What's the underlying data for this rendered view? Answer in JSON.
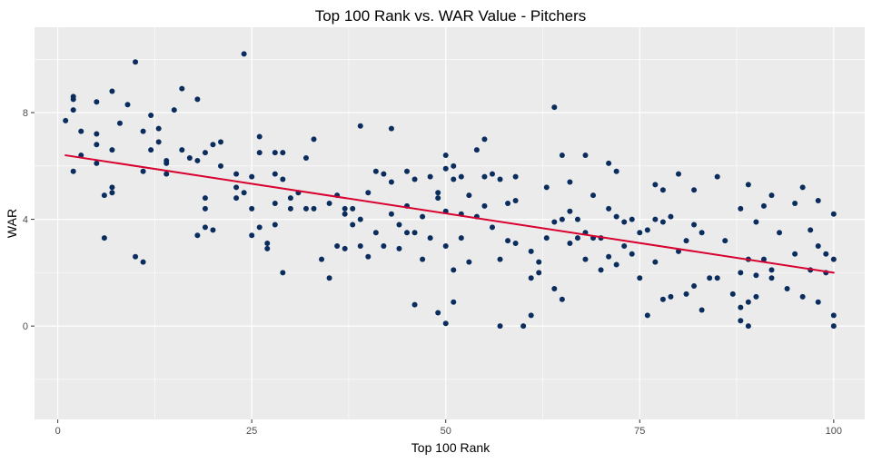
{
  "chart_data": {
    "type": "scatter",
    "title": "Top 100 Rank vs. WAR Value - Pitchers",
    "xlabel": "Top 100 Rank",
    "ylabel": "WAR",
    "xlim": [
      -3,
      104
    ],
    "ylim": [
      -3.5,
      11.2
    ],
    "x_ticks": [
      0,
      25,
      50,
      75,
      100
    ],
    "x_tick_labels": [
      "0",
      "25",
      "50",
      "75",
      "100"
    ],
    "y_ticks": [
      0,
      4,
      8
    ],
    "y_tick_labels": [
      "0",
      "4",
      "8"
    ],
    "grid": true,
    "legend": "none",
    "point_color": "#0b2d5e",
    "trend_color": "#d8002e",
    "panel_background": "#ebebeb",
    "grid_color": "#ffffff",
    "trend_line": {
      "x": [
        1,
        100
      ],
      "y": [
        6.4,
        2.0
      ]
    },
    "series": [
      {
        "values": [
          [
            1,
            7.7
          ],
          [
            2,
            8.6
          ],
          [
            2,
            8.5
          ],
          [
            2,
            8.1
          ],
          [
            2,
            5.8
          ],
          [
            3,
            7.3
          ],
          [
            3,
            6.4
          ],
          [
            5,
            8.4
          ],
          [
            5,
            7.2
          ],
          [
            5,
            6.8
          ],
          [
            5,
            6.1
          ],
          [
            6,
            4.9
          ],
          [
            6,
            3.3
          ],
          [
            7,
            8.8
          ],
          [
            7,
            6.6
          ],
          [
            7,
            5.2
          ],
          [
            7,
            5.0
          ],
          [
            8,
            7.6
          ],
          [
            9,
            8.3
          ],
          [
            10,
            9.9
          ],
          [
            10,
            2.6
          ],
          [
            11,
            7.3
          ],
          [
            11,
            5.8
          ],
          [
            11,
            2.4
          ],
          [
            12,
            7.9
          ],
          [
            12,
            6.6
          ],
          [
            13,
            7.4
          ],
          [
            13,
            6.9
          ],
          [
            14,
            6.2
          ],
          [
            14,
            6.1
          ],
          [
            14,
            5.7
          ],
          [
            15,
            8.1
          ],
          [
            16,
            8.9
          ],
          [
            16,
            6.6
          ],
          [
            17,
            6.3
          ],
          [
            18,
            8.5
          ],
          [
            18,
            6.2
          ],
          [
            18,
            3.4
          ],
          [
            19,
            6.5
          ],
          [
            19,
            4.8
          ],
          [
            19,
            4.4
          ],
          [
            19,
            3.7
          ],
          [
            20,
            6.8
          ],
          [
            20,
            3.6
          ],
          [
            21,
            6.9
          ],
          [
            21,
            6.0
          ],
          [
            23,
            5.7
          ],
          [
            23,
            5.2
          ],
          [
            23,
            4.8
          ],
          [
            24,
            10.2
          ],
          [
            24,
            5.0
          ],
          [
            25,
            5.6
          ],
          [
            25,
            4.4
          ],
          [
            25,
            3.4
          ],
          [
            26,
            7.1
          ],
          [
            26,
            6.5
          ],
          [
            26,
            3.7
          ],
          [
            27,
            3.1
          ],
          [
            27,
            2.9
          ],
          [
            28,
            6.5
          ],
          [
            28,
            5.7
          ],
          [
            28,
            4.6
          ],
          [
            28,
            3.8
          ],
          [
            29,
            6.5
          ],
          [
            29,
            5.5
          ],
          [
            29,
            2.0
          ],
          [
            30,
            4.8
          ],
          [
            30,
            4.4
          ],
          [
            31,
            5.0
          ],
          [
            32,
            6.3
          ],
          [
            32,
            4.4
          ],
          [
            33,
            7.0
          ],
          [
            33,
            4.4
          ],
          [
            34,
            2.5
          ],
          [
            35,
            4.6
          ],
          [
            35,
            1.8
          ],
          [
            36,
            4.9
          ],
          [
            36,
            3.0
          ],
          [
            37,
            4.4
          ],
          [
            37,
            4.2
          ],
          [
            37,
            2.9
          ],
          [
            38,
            4.4
          ],
          [
            38,
            3.8
          ],
          [
            39,
            7.5
          ],
          [
            39,
            4.0
          ],
          [
            39,
            3.0
          ],
          [
            40,
            5.0
          ],
          [
            40,
            2.6
          ],
          [
            41,
            5.8
          ],
          [
            41,
            3.5
          ],
          [
            42,
            5.7
          ],
          [
            42,
            3.0
          ],
          [
            43,
            7.4
          ],
          [
            43,
            5.4
          ],
          [
            43,
            4.2
          ],
          [
            44,
            3.8
          ],
          [
            44,
            2.9
          ],
          [
            45,
            5.8
          ],
          [
            45,
            4.5
          ],
          [
            45,
            3.5
          ],
          [
            46,
            5.5
          ],
          [
            46,
            3.5
          ],
          [
            46,
            0.8
          ],
          [
            47,
            4.1
          ],
          [
            47,
            2.5
          ],
          [
            48,
            5.6
          ],
          [
            48,
            3.3
          ],
          [
            49,
            5.0
          ],
          [
            49,
            4.8
          ],
          [
            49,
            0.5
          ],
          [
            50,
            6.4
          ],
          [
            50,
            5.9
          ],
          [
            50,
            4.3
          ],
          [
            50,
            3.0
          ],
          [
            50,
            0.1
          ],
          [
            51,
            6.0
          ],
          [
            51,
            5.5
          ],
          [
            51,
            2.1
          ],
          [
            51,
            0.9
          ],
          [
            52,
            5.6
          ],
          [
            52,
            4.2
          ],
          [
            52,
            3.3
          ],
          [
            53,
            4.9
          ],
          [
            53,
            2.4
          ],
          [
            54,
            6.6
          ],
          [
            54,
            4.1
          ],
          [
            55,
            7.0
          ],
          [
            55,
            5.6
          ],
          [
            55,
            4.5
          ],
          [
            56,
            5.7
          ],
          [
            56,
            3.7
          ],
          [
            57,
            5.5
          ],
          [
            57,
            2.5
          ],
          [
            57,
            0.0
          ],
          [
            58,
            4.6
          ],
          [
            58,
            3.2
          ],
          [
            59,
            5.6
          ],
          [
            59,
            3.1
          ],
          [
            59,
            4.7
          ],
          [
            60,
            0.0
          ],
          [
            61,
            2.8
          ],
          [
            61,
            1.8
          ],
          [
            61,
            0.4
          ],
          [
            62,
            2.4
          ],
          [
            62,
            2.0
          ],
          [
            63,
            5.2
          ],
          [
            63,
            3.3
          ],
          [
            64,
            8.2
          ],
          [
            64,
            3.9
          ],
          [
            64,
            1.4
          ],
          [
            65,
            6.4
          ],
          [
            65,
            4.0
          ],
          [
            65,
            1.0
          ],
          [
            66,
            5.4
          ],
          [
            66,
            4.3
          ],
          [
            66,
            3.1
          ],
          [
            67,
            4.0
          ],
          [
            67,
            3.3
          ],
          [
            68,
            6.4
          ],
          [
            68,
            3.5
          ],
          [
            68,
            2.5
          ],
          [
            69,
            4.9
          ],
          [
            69,
            3.3
          ],
          [
            70,
            3.3
          ],
          [
            70,
            2.1
          ],
          [
            71,
            6.1
          ],
          [
            71,
            4.4
          ],
          [
            71,
            2.6
          ],
          [
            72,
            5.8
          ],
          [
            72,
            4.1
          ],
          [
            72,
            2.3
          ],
          [
            73,
            3.9
          ],
          [
            73,
            3.0
          ],
          [
            74,
            4.0
          ],
          [
            74,
            2.7
          ],
          [
            75,
            3.5
          ],
          [
            75,
            1.8
          ],
          [
            76,
            3.6
          ],
          [
            76,
            0.4
          ],
          [
            77,
            5.3
          ],
          [
            77,
            4.0
          ],
          [
            77,
            2.4
          ],
          [
            78,
            5.1
          ],
          [
            78,
            3.9
          ],
          [
            78,
            1.0
          ],
          [
            79,
            4.1
          ],
          [
            79,
            1.1
          ],
          [
            80,
            5.7
          ],
          [
            80,
            2.8
          ],
          [
            81,
            3.2
          ],
          [
            81,
            1.2
          ],
          [
            82,
            5.1
          ],
          [
            82,
            3.8
          ],
          [
            82,
            1.5
          ],
          [
            83,
            3.5
          ],
          [
            83,
            0.6
          ],
          [
            84,
            1.8
          ],
          [
            85,
            5.6
          ],
          [
            85,
            1.8
          ],
          [
            86,
            3.2
          ],
          [
            87,
            1.2
          ],
          [
            88,
            4.4
          ],
          [
            88,
            2.0
          ],
          [
            88,
            0.7
          ],
          [
            88,
            0.2
          ],
          [
            89,
            5.3
          ],
          [
            89,
            2.5
          ],
          [
            89,
            0.9
          ],
          [
            89,
            0.0
          ],
          [
            90,
            3.9
          ],
          [
            90,
            1.9
          ],
          [
            90,
            1.1
          ],
          [
            91,
            4.5
          ],
          [
            91,
            2.5
          ],
          [
            92,
            4.9
          ],
          [
            92,
            2.1
          ],
          [
            92,
            1.8
          ],
          [
            93,
            3.5
          ],
          [
            94,
            1.4
          ],
          [
            95,
            4.6
          ],
          [
            95,
            2.7
          ],
          [
            96,
            5.2
          ],
          [
            96,
            1.1
          ],
          [
            97,
            3.6
          ],
          [
            97,
            2.1
          ],
          [
            98,
            4.7
          ],
          [
            98,
            3.0
          ],
          [
            98,
            0.9
          ],
          [
            99,
            2.7
          ],
          [
            99,
            2.0
          ],
          [
            100,
            4.2
          ],
          [
            100,
            2.5
          ],
          [
            100,
            0.4
          ],
          [
            100,
            0.0
          ]
        ]
      }
    ]
  }
}
